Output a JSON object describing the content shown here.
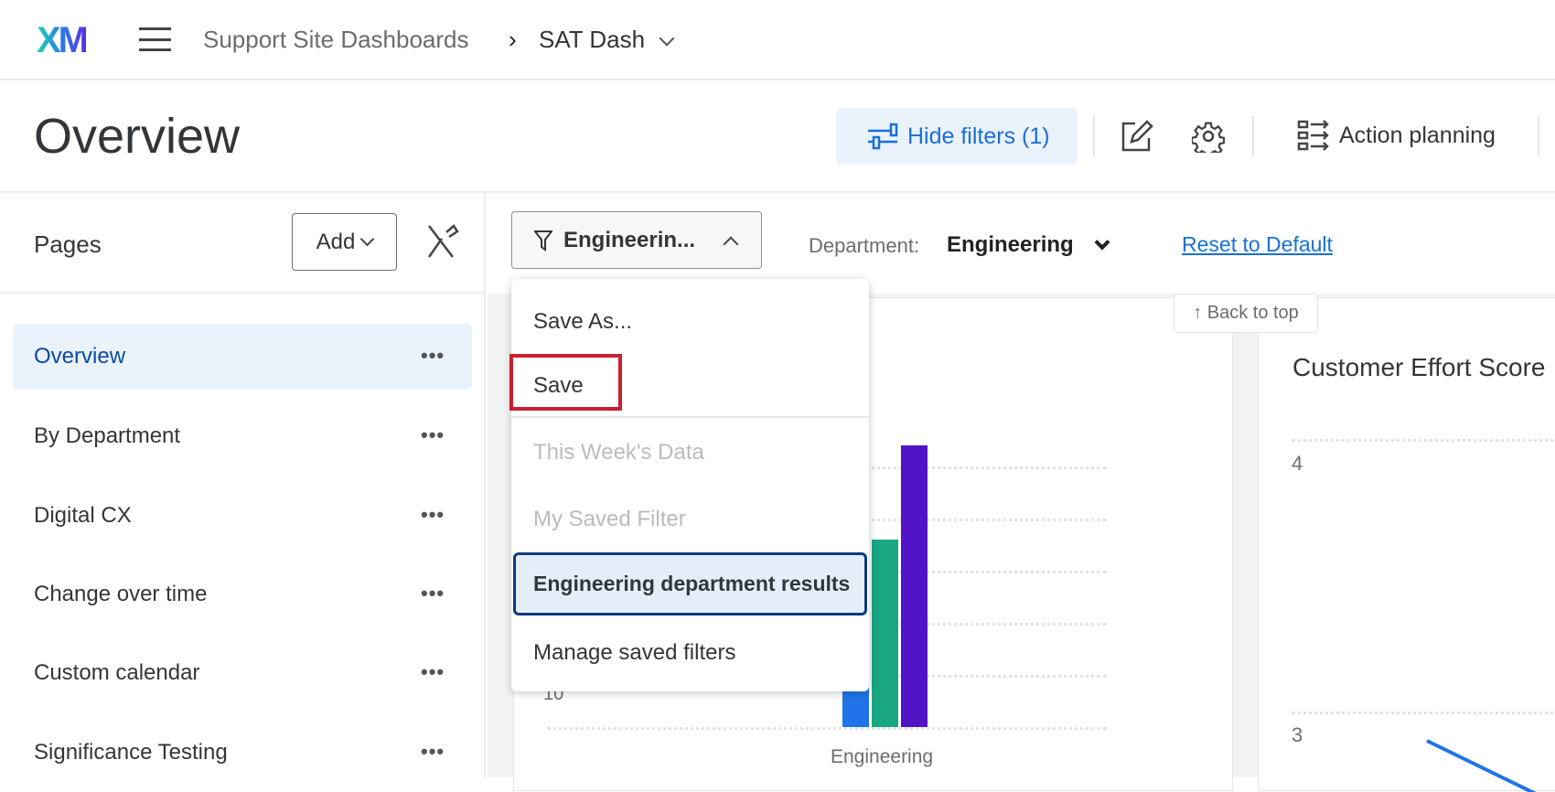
{
  "header": {
    "logo": "XM",
    "breadcrumb_parent": "Support Site Dashboards",
    "breadcrumb_current": "SAT Dash"
  },
  "page": {
    "title": "Overview"
  },
  "toolbar": {
    "hide_filters": "Hide filters (1)",
    "action_planning": "Action planning"
  },
  "sidebar": {
    "title": "Pages",
    "add_label": "Add",
    "items": [
      {
        "label": "Overview",
        "active": true
      },
      {
        "label": "By Department"
      },
      {
        "label": "Digital CX"
      },
      {
        "label": "Change over time"
      },
      {
        "label": "Custom calendar"
      },
      {
        "label": "Significance Testing"
      }
    ]
  },
  "filters": {
    "saved_filter": "Engineerin...",
    "department_label": "Department:",
    "department_value": "Engineering",
    "reset": "Reset to Default"
  },
  "filter_menu": {
    "items": [
      {
        "label": "Save As..."
      },
      {
        "label": "Save",
        "highlighted_box": true
      },
      {
        "label": "This Week's Data",
        "disabled": true
      },
      {
        "label": "My Saved Filter",
        "disabled": true
      },
      {
        "label": "Engineering department results",
        "selected": true
      },
      {
        "label": "Manage saved filters"
      }
    ]
  },
  "back_to_top": "↑ Back to top",
  "colors": {
    "accent": "#1a6fd6",
    "highlight_box": "#c8202f",
    "selected_border": "#0b3b7e"
  },
  "chart_data": [
    {
      "type": "bar",
      "categories": [
        "Engineering"
      ],
      "ytick_visible": [
        "10"
      ],
      "series": [
        {
          "values": [
            null
          ],
          "color": "#2173e8"
        },
        {
          "values": [
            36
          ],
          "color": "#19a683"
        },
        {
          "values": [
            54
          ],
          "color": "#5213c4"
        }
      ]
    },
    {
      "type": "line",
      "title": "Customer Effort Score",
      "yticks": [
        "4",
        "3"
      ],
      "series": [
        {
          "color": "#2173e8"
        }
      ]
    }
  ]
}
